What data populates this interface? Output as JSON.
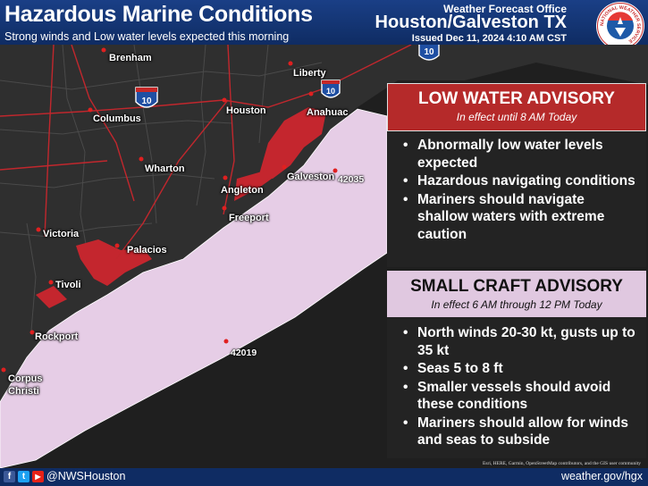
{
  "header": {
    "title": "Hazardous Marine Conditions",
    "subtitle": "Strong winds and Low water levels expected this morning",
    "office_line": "Weather Forecast Office",
    "location": "Houston/Galveston TX",
    "issued": "Issued Dec 11, 2024 4:10 AM CST",
    "logo_text": "NATIONAL WEATHER SERVICE"
  },
  "map": {
    "cities": {
      "brenham": "Brenham",
      "liberty": "Liberty",
      "houston": "Houston",
      "anahuac": "Anahuac",
      "columbus": "Columbus",
      "wharton": "Wharton",
      "angleton": "Angleton",
      "galveston": "Galveston",
      "freeport": "Freeport",
      "victoria": "Victoria",
      "palacios": "Palacios",
      "tivoli": "Tivoli",
      "rockport": "Rockport",
      "corpus": "Corpus",
      "christi": "Christi"
    },
    "buoys": {
      "b1": "42035",
      "b2": "42019"
    },
    "shields": {
      "s1": "10",
      "s2": "10",
      "s3": "10"
    },
    "colors": {
      "land": "#2f2f2f",
      "gulf": "#1f1f1f",
      "small_craft": "#e6cde6",
      "low_water": "#c4262e",
      "roads": "#c1272d"
    }
  },
  "low_water": {
    "title": "LOW WATER ADVISORY",
    "subtitle": "In effect until 8 AM  Today",
    "bullets": [
      "Abnormally low water levels expected",
      "Hazardous navigating conditions",
      "Mariners should navigate shallow waters with extreme caution"
    ]
  },
  "small_craft": {
    "title": "SMALL CRAFT ADVISORY",
    "subtitle": "In effect 6 AM  through 12 PM Today",
    "bullets": [
      "North winds 20-30 kt, gusts up to 35 kt",
      "Seas 5 to 8 ft",
      "Smaller vessels should avoid these conditions",
      "Mariners should allow for winds and seas to subside"
    ]
  },
  "credits": "Esri, HERE, Garmin, OpenStreetMap contributors, and the GIS user community",
  "footer": {
    "facebook": "f",
    "twitter": "t",
    "youtube": "▶",
    "handle": "@NWSHouston",
    "url": "weather.gov/hgx"
  }
}
